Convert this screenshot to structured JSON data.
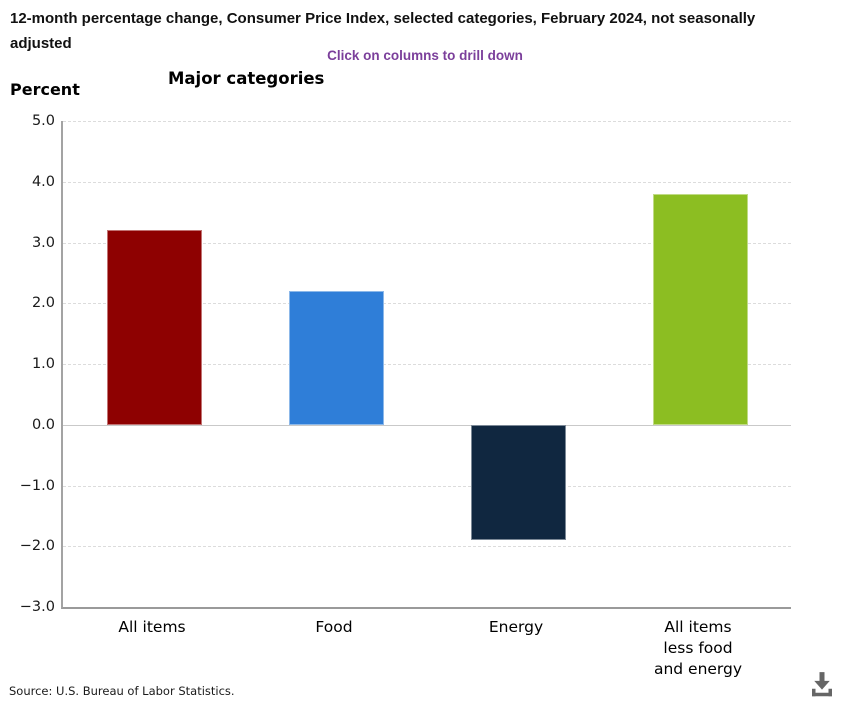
{
  "header": {
    "title": "12-month percentage change, Consumer Price Index, selected categories, February 2024, not seasonally adjusted",
    "drill_hint": "Click on columns to drill down"
  },
  "chart_data": {
    "type": "bar",
    "title": "Major categories",
    "unit_label": "Percent",
    "categories": [
      [
        "All items"
      ],
      [
        "Food"
      ],
      [
        "Energy"
      ],
      [
        "All items",
        "less food",
        "and energy"
      ]
    ],
    "values": [
      3.2,
      2.2,
      -1.9,
      3.8
    ],
    "bar_colors": [
      "#8e0101",
      "#2f7ed8",
      "#102740",
      "#8cbe22"
    ],
    "ylim": [
      -3.0,
      5.0
    ],
    "ytick_step": 1.0,
    "ytick_labels": [
      "5.0",
      "4.0",
      "3.0",
      "2.0",
      "1.0",
      "0.0",
      "−1.0",
      "−2.0",
      "−3.0"
    ],
    "grid": "horizontal-dashed",
    "zero_line": "solid",
    "legend": "none"
  },
  "footer": {
    "source": "Source: U.S. Bureau of Labor Statistics."
  },
  "icons": {
    "download": "download-icon"
  },
  "colors": {
    "accent_purple": "#7b3f9b",
    "axis_gray": "#9a9a9a"
  }
}
